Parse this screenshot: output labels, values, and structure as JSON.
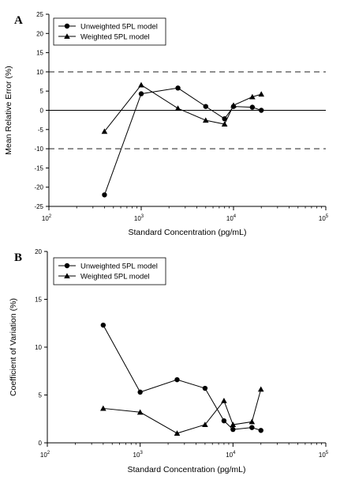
{
  "chart_data": [
    {
      "panel_label": "A",
      "type": "line",
      "xscale": "log",
      "xlabel": "Standard Concentration (pg/mL)",
      "ylabel": "Mean Relative Error (%)",
      "xlim": [
        100,
        100000
      ],
      "ylim": [
        -25,
        25
      ],
      "xticks": [
        100,
        1000,
        10000,
        100000
      ],
      "xtick_labels": [
        [
          "10",
          "2"
        ],
        [
          "10",
          "3"
        ],
        [
          "10",
          "4"
        ],
        [
          "10",
          "5"
        ]
      ],
      "yticks": [
        -25,
        -20,
        -15,
        -10,
        -5,
        0,
        5,
        10,
        15,
        20,
        25
      ],
      "ytick_labels": [
        "-25",
        "-20",
        "-15",
        "-10",
        "-5",
        "0",
        "5",
        "10",
        "15",
        "20",
        "25"
      ],
      "reference_lines": [
        {
          "y": 10,
          "style": "dashed"
        },
        {
          "y": -10,
          "style": "dashed"
        },
        {
          "y": 0,
          "style": "solid"
        }
      ],
      "legend_position": "top-left",
      "series": [
        {
          "name": "Unweighted 5PL model",
          "marker": "circle",
          "x": [
            400,
            1000,
            2500,
            5000,
            8000,
            10000,
            16000,
            20000
          ],
          "y": [
            -22.0,
            4.3,
            5.8,
            1.0,
            -2.2,
            1.0,
            0.8,
            0.0
          ]
        },
        {
          "name": "Weighted 5PL model",
          "marker": "triangle",
          "x": [
            400,
            1000,
            2500,
            5000,
            8000,
            10000,
            16000,
            20000
          ],
          "y": [
            -5.5,
            6.6,
            0.5,
            -2.6,
            -3.6,
            1.3,
            3.5,
            4.2
          ]
        }
      ]
    },
    {
      "panel_label": "B",
      "type": "line",
      "xscale": "log",
      "xlabel": "Standard Concentration (pg/mL)",
      "ylabel": "Coefficient of Variation (%)",
      "xlim": [
        100,
        100000
      ],
      "ylim": [
        0,
        20
      ],
      "xticks": [
        100,
        1000,
        10000,
        100000
      ],
      "xtick_labels": [
        [
          "10",
          "2"
        ],
        [
          "10",
          "3"
        ],
        [
          "10",
          "4"
        ],
        [
          "10",
          "5"
        ]
      ],
      "yticks": [
        0,
        5,
        10,
        15,
        20
      ],
      "ytick_labels": [
        "0",
        "5",
        "10",
        "15",
        "20"
      ],
      "legend_position": "top-left",
      "series": [
        {
          "name": "Unweighted 5PL model",
          "marker": "circle",
          "x": [
            400,
            1000,
            2500,
            5000,
            8000,
            10000,
            16000,
            20000
          ],
          "y": [
            12.3,
            5.3,
            6.6,
            5.7,
            2.3,
            1.4,
            1.6,
            1.3
          ]
        },
        {
          "name": "Weighted 5PL model",
          "marker": "triangle",
          "x": [
            400,
            1000,
            2500,
            5000,
            8000,
            10000,
            16000,
            20000
          ],
          "y": [
            3.6,
            3.2,
            1.0,
            1.9,
            4.4,
            1.9,
            2.2,
            5.6
          ]
        }
      ]
    }
  ]
}
